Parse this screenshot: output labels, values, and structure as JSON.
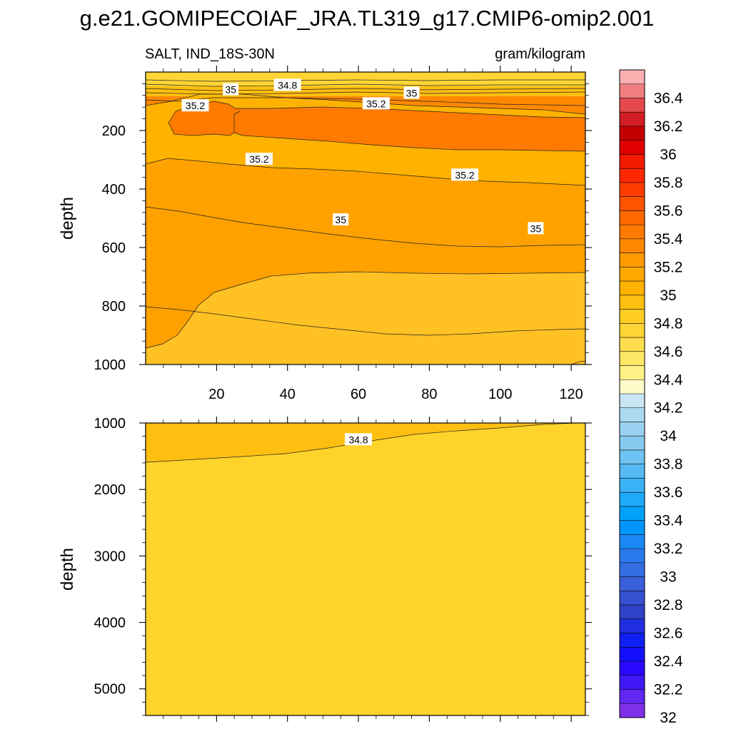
{
  "title": "g.e21.GOMIPECOIAF_JRA.TL319_g17.CMIP6-omip2.001",
  "subtitle_left": "SALT, IND_18S-30N",
  "subtitle_right": "gram/kilogram",
  "chart_data": [
    {
      "type": "heatmap",
      "name": "upper-panel",
      "xlim": [
        0,
        124
      ],
      "ylim": [
        1000,
        0
      ],
      "xlabel": "",
      "ylabel": "depth",
      "x_ticks": [
        20,
        40,
        60,
        80,
        100,
        120
      ],
      "x_tick_labels": [
        "20",
        "40",
        "60",
        "80",
        "100",
        "120"
      ],
      "y_ticks": [
        200,
        400,
        600,
        800,
        1000
      ],
      "y_tick_labels": [
        "200",
        "400",
        "600",
        "800",
        "1000"
      ],
      "contour_labels": [
        {
          "text": "35",
          "x": 24,
          "y": 60
        },
        {
          "text": "34.8",
          "x": 40,
          "y": 45
        },
        {
          "text": "35.2",
          "x": 14,
          "y": 115
        },
        {
          "text": "35.2",
          "x": 65,
          "y": 108
        },
        {
          "text": "35",
          "x": 75,
          "y": 72
        },
        {
          "text": "35.2",
          "x": 32,
          "y": 298
        },
        {
          "text": "35.2",
          "x": 90,
          "y": 352
        },
        {
          "text": "35",
          "x": 55,
          "y": 505
        },
        {
          "text": "35",
          "x": 110,
          "y": 535
        }
      ]
    },
    {
      "type": "heatmap",
      "name": "lower-panel",
      "xlim": [
        0,
        124
      ],
      "ylim": [
        5400,
        1000
      ],
      "xlabel": "",
      "ylabel": "depth",
      "y_ticks": [
        1000,
        2000,
        3000,
        4000,
        5000
      ],
      "y_tick_labels": [
        "1000",
        "2000",
        "3000",
        "4000",
        "5000"
      ],
      "contour_labels": [
        {
          "text": "34.8",
          "x": 60,
          "y": 1250
        }
      ]
    }
  ],
  "colorbar": {
    "labels": [
      "36.4",
      "36.2",
      "36",
      "35.8",
      "35.6",
      "35.4",
      "35.2",
      "35",
      "34.8",
      "34.6",
      "34.4",
      "34.2",
      "34",
      "33.8",
      "33.6",
      "33.4",
      "33.2",
      "33",
      "32.8",
      "32.6",
      "32.4",
      "32.2",
      "32"
    ],
    "colors": [
      "#fbb0b2",
      "#f07e80",
      "#e6494b",
      "#d21e22",
      "#c40000",
      "#e00000",
      "#f21a00",
      "#ff2800",
      "#ff3c00",
      "#ff5300",
      "#ff6900",
      "#ff7a00",
      "#ff8800",
      "#ff9a00",
      "#ffa800",
      "#ffb300",
      "#ffbf10",
      "#ffcc22",
      "#ffd535",
      "#ffdd4d",
      "#ffe766",
      "#fff185",
      "#fffbc9",
      "#c8e6f4",
      "#aedaf0",
      "#9bd1f0",
      "#86c9ef",
      "#6ec3f2",
      "#56bbf4",
      "#3bb3f7",
      "#1eaaf9",
      "#00a2fb",
      "#0096fd",
      "#1a88f4",
      "#2a7aec",
      "#356ee2",
      "#3a60d8",
      "#3550d0",
      "#2f42c8",
      "#2030e0",
      "#1020f0",
      "#1410ff",
      "#2a08ff",
      "#4018f8",
      "#6028f0",
      "#8030e8"
    ]
  }
}
